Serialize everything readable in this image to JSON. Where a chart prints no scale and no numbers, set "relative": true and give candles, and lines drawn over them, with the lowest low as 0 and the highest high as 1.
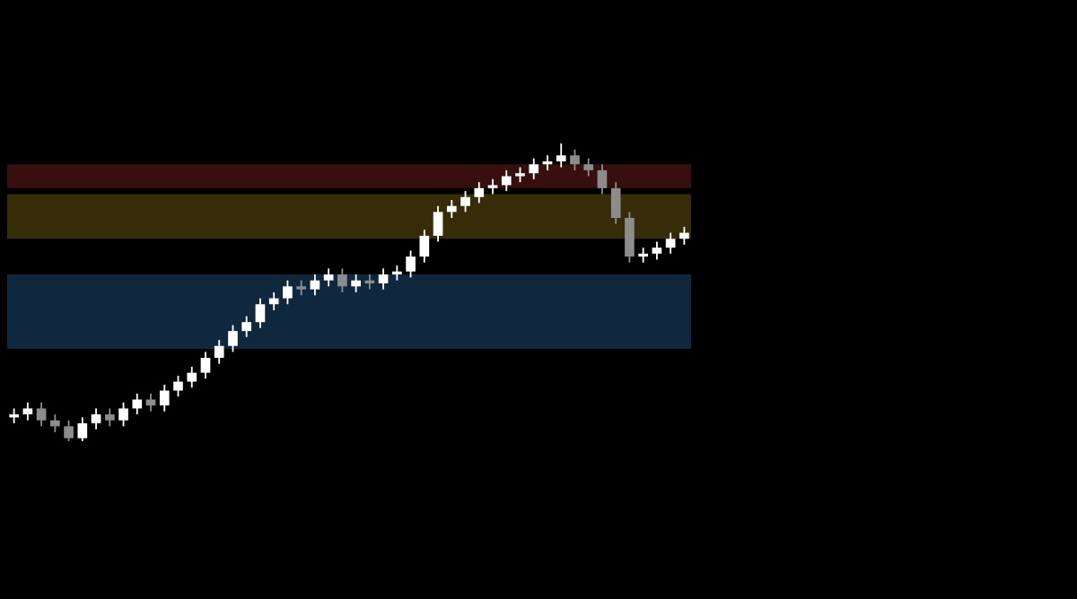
{
  "chart_data": {
    "type": "candlestick",
    "relative": true,
    "categories": [
      null,
      null,
      null,
      null,
      null,
      null,
      null,
      null,
      null,
      null,
      null,
      null,
      null,
      null,
      null,
      null,
      null,
      null,
      null,
      null,
      null,
      null,
      null,
      null,
      null,
      null,
      null,
      null,
      null,
      null,
      null,
      null,
      null,
      null,
      null,
      null,
      null,
      null,
      null,
      null,
      null,
      null,
      null,
      null,
      null,
      null,
      null,
      null,
      null,
      null
    ],
    "ohlc": [
      [
        0.08,
        0.11,
        0.06,
        0.09
      ],
      [
        0.09,
        0.13,
        0.07,
        0.11
      ],
      [
        0.11,
        0.13,
        0.05,
        0.07
      ],
      [
        0.07,
        0.09,
        0.03,
        0.05
      ],
      [
        0.05,
        0.07,
        0,
        0.01
      ],
      [
        0.01,
        0.08,
        0,
        0.06
      ],
      [
        0.06,
        0.11,
        0.04,
        0.09
      ],
      [
        0.09,
        0.11,
        0.05,
        0.07
      ],
      [
        0.07,
        0.13,
        0.05,
        0.11
      ],
      [
        0.11,
        0.16,
        0.09,
        0.14
      ],
      [
        0.14,
        0.16,
        0.1,
        0.12
      ],
      [
        0.12,
        0.19,
        0.1,
        0.17
      ],
      [
        0.17,
        0.22,
        0.15,
        0.2
      ],
      [
        0.2,
        0.25,
        0.18,
        0.23
      ],
      [
        0.23,
        0.3,
        0.21,
        0.28
      ],
      [
        0.28,
        0.34,
        0.26,
        0.32
      ],
      [
        0.32,
        0.39,
        0.3,
        0.37
      ],
      [
        0.37,
        0.42,
        0.35,
        0.4
      ],
      [
        0.4,
        0.48,
        0.38,
        0.46
      ],
      [
        0.46,
        0.5,
        0.44,
        0.48
      ],
      [
        0.48,
        0.54,
        0.46,
        0.52
      ],
      [
        0.52,
        0.54,
        0.49,
        0.51
      ],
      [
        0.51,
        0.56,
        0.49,
        0.54
      ],
      [
        0.54,
        0.58,
        0.52,
        0.56
      ],
      [
        0.56,
        0.58,
        0.5,
        0.52
      ],
      [
        0.52,
        0.56,
        0.5,
        0.54
      ],
      [
        0.54,
        0.56,
        0.51,
        0.53
      ],
      [
        0.53,
        0.58,
        0.51,
        0.56
      ],
      [
        0.56,
        0.59,
        0.54,
        0.57
      ],
      [
        0.57,
        0.64,
        0.55,
        0.62
      ],
      [
        0.62,
        0.71,
        0.6,
        0.69
      ],
      [
        0.69,
        0.79,
        0.67,
        0.77
      ],
      [
        0.77,
        0.81,
        0.75,
        0.79
      ],
      [
        0.79,
        0.84,
        0.77,
        0.82
      ],
      [
        0.82,
        0.87,
        0.8,
        0.85
      ],
      [
        0.85,
        0.88,
        0.83,
        0.86
      ],
      [
        0.86,
        0.91,
        0.84,
        0.89
      ],
      [
        0.89,
        0.92,
        0.87,
        0.9
      ],
      [
        0.9,
        0.95,
        0.88,
        0.93
      ],
      [
        0.93,
        0.96,
        0.91,
        0.94
      ],
      [
        0.94,
        1,
        0.92,
        0.96
      ],
      [
        0.96,
        0.98,
        0.91,
        0.93
      ],
      [
        0.93,
        0.95,
        0.89,
        0.91
      ],
      [
        0.91,
        0.93,
        0.83,
        0.85
      ],
      [
        0.85,
        0.87,
        0.73,
        0.75
      ],
      [
        0.75,
        0.77,
        0.6,
        0.62
      ],
      [
        0.62,
        0.65,
        0.6,
        0.63
      ],
      [
        0.63,
        0.67,
        0.61,
        0.65
      ],
      [
        0.65,
        0.7,
        0.63,
        0.68
      ],
      [
        0.68,
        0.72,
        0.66,
        0.7
      ]
    ],
    "colors": [
      "#ffffff",
      "#ffffff",
      "#8c8c8c",
      "#8c8c8c",
      "#8c8c8c",
      "#ffffff",
      "#ffffff",
      "#8c8c8c",
      "#ffffff",
      "#ffffff",
      "#8c8c8c",
      "#ffffff",
      "#ffffff",
      "#ffffff",
      "#ffffff",
      "#ffffff",
      "#ffffff",
      "#ffffff",
      "#ffffff",
      "#ffffff",
      "#ffffff",
      "#8c8c8c",
      "#ffffff",
      "#ffffff",
      "#8c8c8c",
      "#ffffff",
      "#8c8c8c",
      "#ffffff",
      "#ffffff",
      "#ffffff",
      "#ffffff",
      "#ffffff",
      "#ffffff",
      "#ffffff",
      "#ffffff",
      "#ffffff",
      "#ffffff",
      "#ffffff",
      "#ffffff",
      "#ffffff",
      "#ffffff",
      "#8c8c8c",
      "#8c8c8c",
      "#8c8c8c",
      "#8c8c8c",
      "#8c8c8c",
      "#ffffff",
      "#ffffff",
      "#ffffff",
      "#ffffff"
    ],
    "bands": [
      {
        "axis": "y",
        "from": 0.31,
        "to": 0.56,
        "color": "#1e4f7a"
      },
      {
        "axis": "y",
        "from": 0.68,
        "to": 0.83,
        "color": "#6b5a10"
      },
      {
        "axis": "y",
        "from": 0.85,
        "to": 0.93,
        "color": "#6e1d1d"
      }
    ]
  }
}
